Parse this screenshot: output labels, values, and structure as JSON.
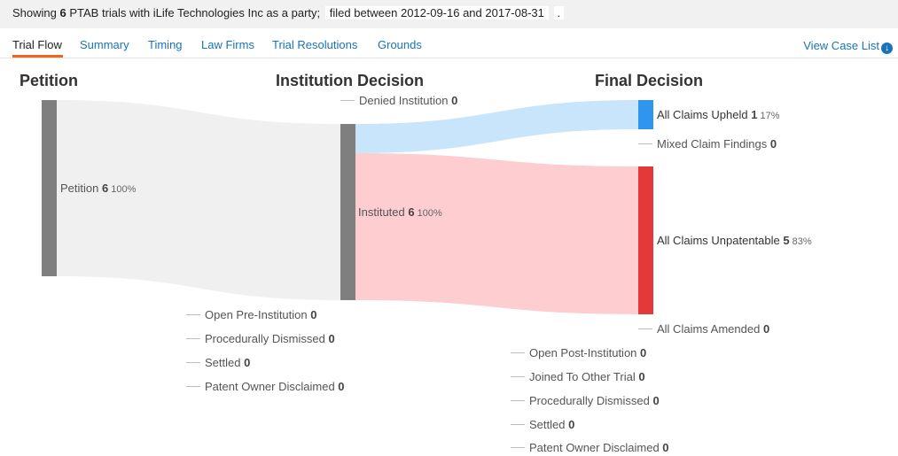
{
  "summary": {
    "showing": "Showing",
    "count": "6",
    "mid": "PTAB trials with iLife Technologies Inc as a party;",
    "filed": "filed between 2012-09-16 and 2017-08-31",
    "end": "."
  },
  "tabs": [
    "Trial Flow",
    "Summary",
    "Timing",
    "Law Firms",
    "Trial Resolutions",
    "Grounds"
  ],
  "view_case_list": "View Case List",
  "columns": [
    "Petition",
    "Institution Decision",
    "Final Decision"
  ],
  "nodes": {
    "petition": {
      "label": "Petition",
      "count": "6",
      "pct": "100%"
    },
    "denied": {
      "label": "Denied Institution",
      "count": "0"
    },
    "instituted": {
      "label": "Instituted",
      "count": "6",
      "pct": "100%"
    },
    "upheld": {
      "label": "All Claims Upheld",
      "count": "1",
      "pct": "17%"
    },
    "mixed": {
      "label": "Mixed Claim Findings",
      "count": "0"
    },
    "unpatentable": {
      "label": "All Claims Unpatentable",
      "count": "5",
      "pct": "83%"
    },
    "amended": {
      "label": "All Claims Amended",
      "count": "0"
    }
  },
  "pre_institution": [
    {
      "label": "Open Pre-Institution",
      "count": "0"
    },
    {
      "label": "Procedurally Dismissed",
      "count": "0"
    },
    {
      "label": "Settled",
      "count": "0"
    },
    {
      "label": "Patent Owner Disclaimed",
      "count": "0"
    }
  ],
  "post_institution": [
    {
      "label": "Open Post-Institution",
      "count": "0"
    },
    {
      "label": "Joined To Other Trial",
      "count": "0"
    },
    {
      "label": "Procedurally Dismissed",
      "count": "0"
    },
    {
      "label": "Settled",
      "count": "0"
    },
    {
      "label": "Patent Owner Disclaimed",
      "count": "0"
    }
  ],
  "colors": {
    "node_gray": "#7f7f7f",
    "flow_gray": "#f0f0f0",
    "flow_blue": "#c9e5fb",
    "flow_red": "#fdcdd0",
    "upheld_blue": "#2f96ef",
    "unpatentable_red": "#e53838",
    "accent_orange": "#f26322",
    "link_blue": "#1a73b8"
  }
}
